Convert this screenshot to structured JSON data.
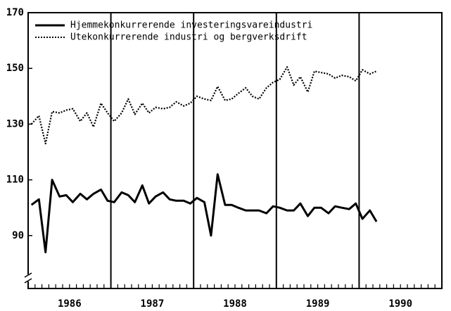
{
  "chart_data": {
    "type": "line",
    "x": [
      1986.04,
      1986.13,
      1986.21,
      1986.29,
      1986.38,
      1986.46,
      1986.54,
      1986.63,
      1986.71,
      1986.79,
      1986.88,
      1986.96,
      1987.04,
      1987.13,
      1987.21,
      1987.29,
      1987.38,
      1987.46,
      1987.54,
      1987.63,
      1987.71,
      1987.79,
      1987.88,
      1987.96,
      1988.04,
      1988.13,
      1988.21,
      1988.29,
      1988.38,
      1988.46,
      1988.54,
      1988.63,
      1988.71,
      1988.79,
      1988.88,
      1988.96,
      1989.04,
      1989.13,
      1989.21,
      1989.29,
      1989.38,
      1989.46,
      1989.54,
      1989.63,
      1989.71,
      1989.79,
      1989.88,
      1989.96,
      1990.04,
      1990.13,
      1990.21
    ],
    "series": [
      {
        "name": "Hjemmekonkurrerende investeringsvareindustri",
        "color": "#000000",
        "style": "solid",
        "values": [
          101,
          103,
          84,
          110,
          104,
          104.5,
          102,
          105,
          103,
          105,
          106.5,
          102.5,
          102,
          105.5,
          104.5,
          102,
          108,
          101.5,
          104,
          105.5,
          103,
          102.5,
          102.5,
          101.5,
          103.5,
          102,
          90,
          112,
          101,
          101,
          100,
          99,
          99,
          99,
          98,
          100.5,
          100,
          99,
          99,
          101.5,
          97,
          100,
          100,
          98,
          100.5,
          100,
          99.5,
          101.5,
          96,
          99,
          95
        ]
      },
      {
        "name": "Utekonkurrerende industri og bergverksdrift",
        "color": "#000000",
        "style": "dotted",
        "values": [
          130,
          133,
          123,
          134.5,
          134,
          135,
          135.5,
          131,
          134,
          129,
          137.5,
          134,
          131,
          134,
          139,
          133.5,
          137.5,
          134,
          136,
          135.5,
          136,
          138,
          136.5,
          137.5,
          140,
          139,
          138.5,
          143.5,
          138.5,
          139,
          141,
          143,
          140,
          139,
          143,
          145,
          146,
          150.5,
          144,
          147,
          141.5,
          149,
          148.5,
          148,
          146.5,
          147.5,
          147,
          145.5,
          149.5,
          148,
          149
        ]
      }
    ],
    "xlim": [
      1986,
      1991
    ],
    "xticks": [
      {
        "value": 1986.5,
        "label": "1986"
      },
      {
        "value": 1987.5,
        "label": "1987"
      },
      {
        "value": 1988.5,
        "label": "1988"
      },
      {
        "value": 1989.5,
        "label": "1989"
      },
      {
        "value": 1990.5,
        "label": "1990"
      }
    ],
    "year_lines": [
      1987,
      1988,
      1989,
      1990
    ],
    "ylim": [
      71,
      170
    ],
    "yticks": [
      90,
      110,
      130,
      150,
      170
    ],
    "legend": "top-left"
  }
}
